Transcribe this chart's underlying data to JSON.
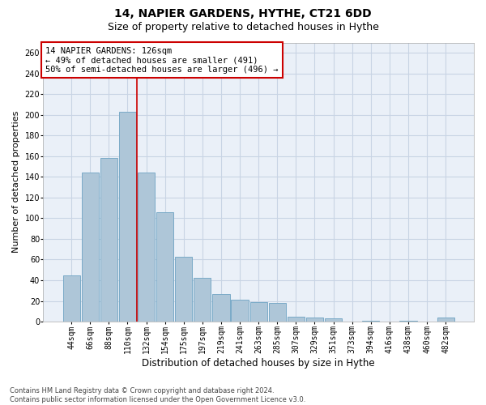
{
  "title1": "14, NAPIER GARDENS, HYTHE, CT21 6DD",
  "title2": "Size of property relative to detached houses in Hythe",
  "xlabel": "Distribution of detached houses by size in Hythe",
  "ylabel": "Number of detached properties",
  "footnote": "Contains HM Land Registry data © Crown copyright and database right 2024.\nContains public sector information licensed under the Open Government Licence v3.0.",
  "bar_labels": [
    "44sqm",
    "66sqm",
    "88sqm",
    "110sqm",
    "132sqm",
    "154sqm",
    "175sqm",
    "197sqm",
    "219sqm",
    "241sqm",
    "263sqm",
    "285sqm",
    "307sqm",
    "329sqm",
    "351sqm",
    "373sqm",
    "394sqm",
    "416sqm",
    "438sqm",
    "460sqm",
    "482sqm"
  ],
  "bar_values": [
    45,
    144,
    158,
    203,
    144,
    106,
    63,
    42,
    27,
    21,
    19,
    18,
    5,
    4,
    3,
    0,
    1,
    0,
    1,
    0,
    4
  ],
  "bar_color": "#aec6d8",
  "bar_edge_color": "#7aaac8",
  "grid_color": "#c8d4e4",
  "background_color": "#eaf0f8",
  "annotation_box_text": "14 NAPIER GARDENS: 126sqm\n← 49% of detached houses are smaller (491)\n50% of semi-detached houses are larger (496) →",
  "annotation_box_color": "#ffffff",
  "annotation_box_border": "#cc0000",
  "vline_x": 3.52,
  "vline_color": "#cc0000",
  "ylim": [
    0,
    270
  ],
  "yticks": [
    0,
    20,
    40,
    60,
    80,
    100,
    120,
    140,
    160,
    180,
    200,
    220,
    240,
    260
  ],
  "title1_fontsize": 10,
  "title2_fontsize": 9,
  "xlabel_fontsize": 8.5,
  "ylabel_fontsize": 8,
  "tick_fontsize": 7,
  "annot_fontsize": 7.5
}
